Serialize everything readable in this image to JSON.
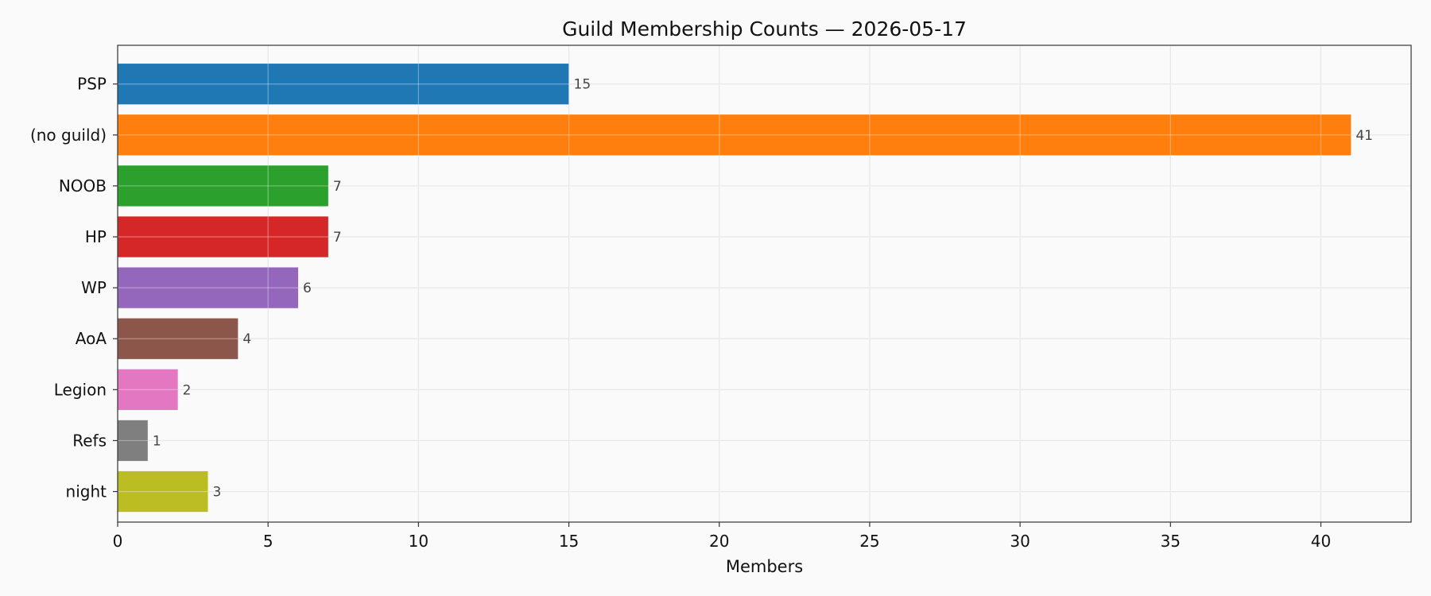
{
  "chart_data": {
    "type": "bar",
    "orientation": "horizontal",
    "title": "Guild Membership Counts — 2026-05-17",
    "xlabel": "Members",
    "ylabel": "",
    "xlim": [
      0,
      43
    ],
    "xticks": [
      0,
      5,
      10,
      15,
      20,
      25,
      30,
      35,
      40
    ],
    "grid": true,
    "categories": [
      "PSP",
      "(no guild)",
      "NOOB",
      "HP",
      "WP",
      "AoA",
      "Legion",
      "Refs",
      "night"
    ],
    "values": [
      15,
      41,
      7,
      7,
      6,
      4,
      2,
      1,
      3
    ],
    "colors": [
      "#1f77b4",
      "#ff7f0e",
      "#2ca02c",
      "#d62728",
      "#9467bd",
      "#8c564b",
      "#e377c2",
      "#7f7f7f",
      "#bcbd22"
    ],
    "background": "#fafafa"
  }
}
